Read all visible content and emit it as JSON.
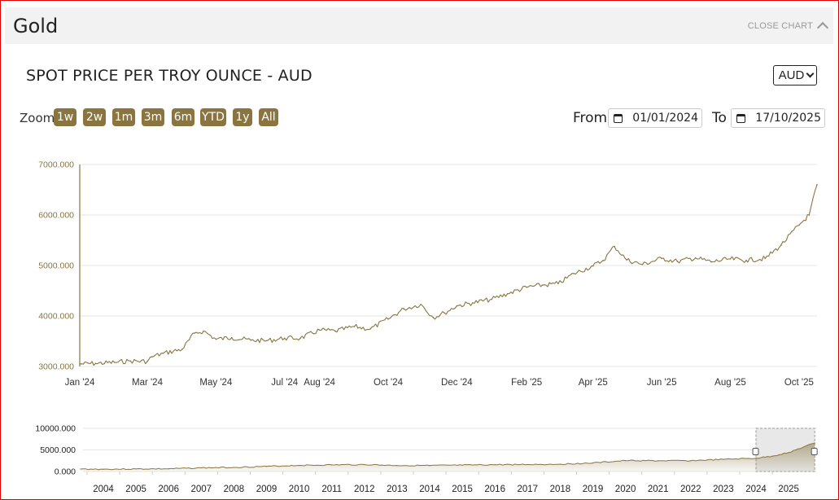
{
  "header": {
    "title": "Gold",
    "close_label": "CLOSE CHART",
    "close_icon": "chevron-up-icon"
  },
  "section": {
    "title": "SPOT PRICE PER TROY OUNCE - AUD"
  },
  "currency": {
    "selected": "AUD"
  },
  "zoom": {
    "label": "Zoom",
    "buttons": [
      "1w",
      "2w",
      "1m",
      "3m",
      "6m",
      "YTD",
      "1y",
      "All"
    ]
  },
  "range": {
    "from_label": "From",
    "from_value": "01/01/2024",
    "to_label": "To",
    "to_value": "17/10/2025"
  },
  "colors": {
    "accent": "#8a7440",
    "line": "#8a7440",
    "grid": "#e6e6e6",
    "frame": "#e00000"
  },
  "chart_data": [
    {
      "type": "line",
      "title": "",
      "xlabel": "",
      "ylabel": "",
      "ylim": [
        3000,
        7000
      ],
      "y_ticks": [
        "3000.000",
        "4000.000",
        "5000.000",
        "6000.000",
        "7000.000"
      ],
      "x_ticks": [
        "Jan '24",
        "Mar '24",
        "May '24",
        "Jul '24",
        "Aug '24",
        "Oct '24",
        "Dec '24",
        "Feb '25",
        "Apr '25",
        "Jun '25",
        "Aug '25",
        "Oct '25"
      ],
      "x": [
        "2024-01-01",
        "2024-01-15",
        "2024-02-01",
        "2024-02-15",
        "2024-03-01",
        "2024-03-05",
        "2024-03-15",
        "2024-04-01",
        "2024-04-12",
        "2024-04-20",
        "2024-05-01",
        "2024-05-15",
        "2024-06-01",
        "2024-06-15",
        "2024-07-01",
        "2024-07-15",
        "2024-08-01",
        "2024-08-15",
        "2024-09-01",
        "2024-09-15",
        "2024-10-01",
        "2024-10-15",
        "2024-10-30",
        "2024-11-10",
        "2024-11-20",
        "2024-12-01",
        "2024-12-15",
        "2025-01-01",
        "2025-01-15",
        "2025-02-01",
        "2025-02-15",
        "2025-03-01",
        "2025-03-15",
        "2025-04-01",
        "2025-04-10",
        "2025-04-20",
        "2025-05-01",
        "2025-05-15",
        "2025-06-01",
        "2025-06-15",
        "2025-07-01",
        "2025-07-15",
        "2025-08-01",
        "2025-08-15",
        "2025-09-01",
        "2025-09-15",
        "2025-10-01",
        "2025-10-10",
        "2025-10-17"
      ],
      "values": [
        3050,
        3060,
        3080,
        3110,
        3100,
        3190,
        3260,
        3340,
        3660,
        3700,
        3540,
        3570,
        3520,
        3510,
        3560,
        3560,
        3720,
        3700,
        3790,
        3740,
        3940,
        4140,
        4230,
        3970,
        4060,
        4200,
        4260,
        4330,
        4440,
        4570,
        4610,
        4640,
        4840,
        4990,
        5100,
        5380,
        5110,
        5020,
        5140,
        5080,
        5150,
        5070,
        5130,
        5100,
        5140,
        5400,
        5800,
        6000,
        6600
      ]
    },
    {
      "type": "area",
      "title": "",
      "ylim": [
        0,
        10000
      ],
      "y_ticks": [
        "0.000",
        "5000.000",
        "10000.000"
      ],
      "x_ticks": [
        "2004",
        "2005",
        "2006",
        "2007",
        "2008",
        "2009",
        "2010",
        "2011",
        "2012",
        "2013",
        "2014",
        "2015",
        "2016",
        "2017",
        "2018",
        "2019",
        "2020",
        "2021",
        "2022",
        "2023",
        "2024",
        "2025"
      ],
      "x": [
        2003.3,
        2004,
        2005,
        2006,
        2007,
        2008,
        2009,
        2010,
        2011,
        2012,
        2013,
        2014,
        2015,
        2016,
        2017,
        2018,
        2019,
        2020,
        2021,
        2022,
        2023,
        2024,
        2024.5,
        2025,
        2025.8
      ],
      "values": [
        560,
        520,
        580,
        620,
        840,
        950,
        1180,
        1420,
        1530,
        1600,
        1400,
        1370,
        1460,
        1570,
        1620,
        1700,
        1980,
        2530,
        2480,
        2500,
        2810,
        3060,
        3550,
        4400,
        6600
      ],
      "selected_range": [
        "2024",
        "2025-10"
      ]
    }
  ]
}
